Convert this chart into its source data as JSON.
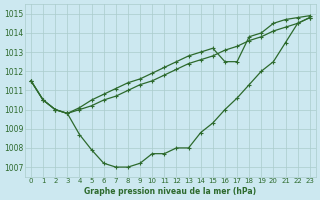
{
  "background_color": "#cce8f0",
  "grid_color": "#aacccc",
  "line_color": "#2d6a2d",
  "title": "Graphe pression niveau de la mer (hPa)",
  "ylim": [
    1006.5,
    1015.5
  ],
  "xlim": [
    -0.5,
    23.5
  ],
  "yticks": [
    1007,
    1008,
    1009,
    1010,
    1011,
    1012,
    1013,
    1014,
    1015
  ],
  "xticks": [
    0,
    1,
    2,
    3,
    4,
    5,
    6,
    7,
    8,
    9,
    10,
    11,
    12,
    13,
    14,
    15,
    16,
    17,
    18,
    19,
    20,
    21,
    22,
    23
  ],
  "s_u": [
    1011.5,
    1010.5,
    1010.0,
    1009.8,
    1008.7,
    1007.9,
    1007.2,
    1007.0,
    1007.0,
    1007.2,
    1007.7,
    1007.7,
    1008.0,
    1008.0,
    1008.8,
    1009.3,
    1010.0,
    1010.6,
    1011.3,
    1012.0,
    1012.5,
    1013.5,
    1014.5,
    1014.8
  ],
  "s_mid": [
    1011.5,
    1010.5,
    1010.0,
    1009.8,
    1010.0,
    1010.2,
    1010.5,
    1010.7,
    1011.0,
    1011.3,
    1011.5,
    1011.8,
    1012.1,
    1012.4,
    1012.6,
    1012.8,
    1013.1,
    1013.3,
    1013.6,
    1013.8,
    1014.1,
    1014.3,
    1014.5,
    1014.8
  ],
  "s_top": [
    1011.5,
    1010.5,
    1010.0,
    1009.8,
    1010.1,
    1010.5,
    1010.8,
    1011.1,
    1011.4,
    1011.6,
    1011.9,
    1012.2,
    1012.5,
    1012.8,
    1013.0,
    1013.2,
    1012.5,
    1012.5,
    1013.8,
    1014.0,
    1014.5,
    1014.7,
    1014.8,
    1014.9
  ]
}
